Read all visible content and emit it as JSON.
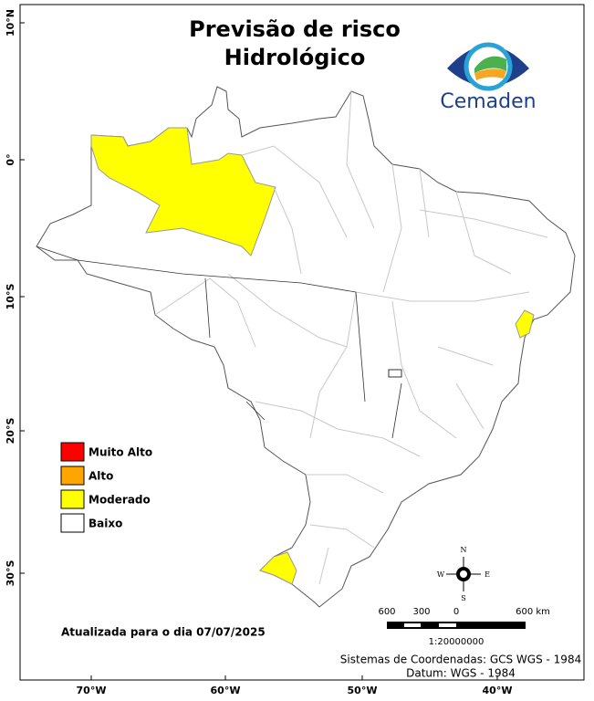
{
  "header": {
    "title_lines": [
      "Previsão de risco",
      "Hidrológico"
    ],
    "logo_text": "Cemaden"
  },
  "legend": {
    "items": [
      {
        "label": "Muito Alto",
        "color": "#ff0000"
      },
      {
        "label": "Alto",
        "color": "#ffa500"
      },
      {
        "label": "Moderado",
        "color": "#ffff00"
      },
      {
        "label": "Baixo",
        "color": "#ffffff"
      }
    ]
  },
  "axes": {
    "lat_labels": [
      "10°N",
      "0°",
      "10°S",
      "20°S",
      "30°S"
    ],
    "lon_labels": [
      "70°W",
      "60°W",
      "50°W",
      "40°W"
    ]
  },
  "update_note": "Atualizada para o dia 07/07/2025",
  "scale": {
    "labels": [
      "600",
      "300",
      "0",
      "600 km"
    ],
    "ratio": "1:20000000"
  },
  "compass": {
    "n": "N",
    "s": "S",
    "e": "E",
    "w": "W"
  },
  "footer": {
    "coords": "Sistemas de Coordenadas: GCS WGS - 1984",
    "datum": "Datum: WGS - 1984"
  }
}
